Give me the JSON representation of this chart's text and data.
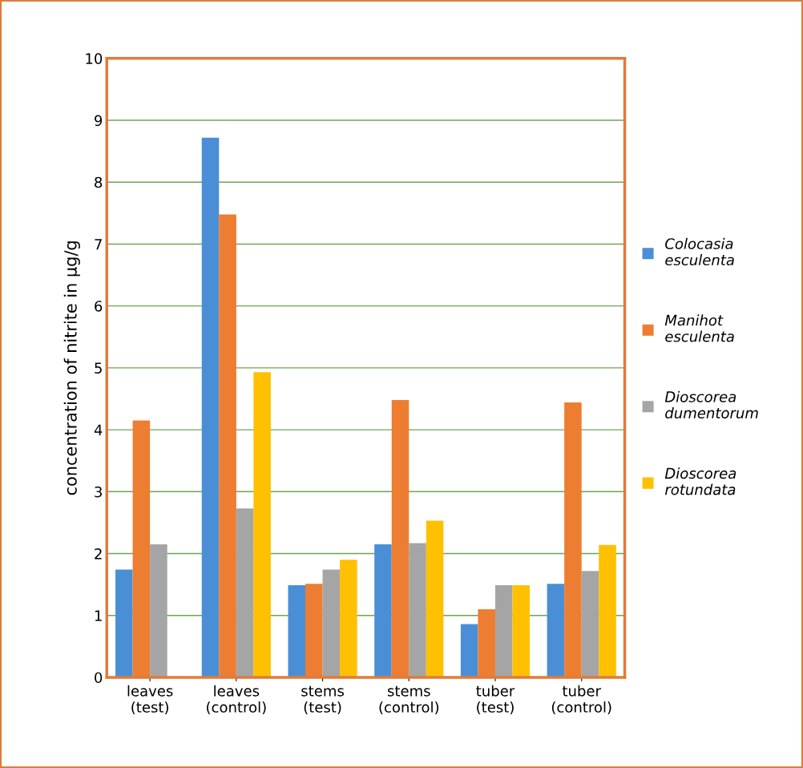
{
  "chart_data": {
    "type": "bar",
    "ylabel": "concentration of nitrite in µg/g",
    "categories": [
      "leaves (test)",
      "leaves (control)",
      "stems (test)",
      "stems (control)",
      "tuber (test)",
      "tuber (control)"
    ],
    "series": [
      {
        "name": "Colocasia esculenta",
        "color": "#4a8fd6",
        "values": [
          1.74,
          8.72,
          1.49,
          2.15,
          0.86,
          1.51
        ]
      },
      {
        "name": "Manihot esculenta",
        "color": "#ed7d31",
        "values": [
          4.15,
          7.48,
          1.51,
          4.48,
          1.1,
          4.44
        ]
      },
      {
        "name": "Dioscorea dumentorum",
        "color": "#a5a5a5",
        "values": [
          2.15,
          2.73,
          1.74,
          2.17,
          1.49,
          1.72
        ]
      },
      {
        "name": "Dioscorea rotundata",
        "color": "#ffc000",
        "values": [
          0,
          4.93,
          1.9,
          2.53,
          1.49,
          2.14
        ]
      }
    ],
    "ylim": [
      0,
      10
    ],
    "yticks": [
      0,
      1,
      2,
      3,
      4,
      5,
      6,
      7,
      8,
      9,
      10
    ],
    "grid": "y",
    "legend": "right"
  }
}
